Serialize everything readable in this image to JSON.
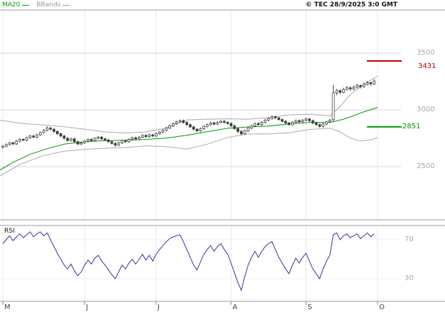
{
  "header": {
    "legend": [
      {
        "label": "MA20",
        "color": "#009900"
      },
      {
        "label": "BBands",
        "color": "#999999"
      }
    ],
    "copyright": "© TEC 28/9/2025 3:0 GMT"
  },
  "chart_data": [
    {
      "type": "candlestick",
      "name": "price-panel",
      "title": "",
      "xlabel": "",
      "ylabel": "",
      "grid": "horizontal",
      "y_ticks": [
        3500,
        3000,
        2500
      ],
      "ylim_visible": [
        2030,
        3880
      ],
      "candle_color": "#3c3c3c",
      "band_color": "#aaaaaa",
      "levels": [
        {
          "value": 3431,
          "color": "#bb0000"
        },
        {
          "value": 2851,
          "color": "#009900"
        }
      ],
      "x_months": [
        {
          "label": "M",
          "day": 0
        },
        {
          "label": "J",
          "day": 24
        },
        {
          "label": "J",
          "day": 45
        },
        {
          "label": "A",
          "day": 67
        },
        {
          "label": "S",
          "day": 89
        },
        {
          "label": "O",
          "day": 110
        }
      ],
      "candles": [
        [
          2670,
          2690,
          2660,
          2680
        ],
        [
          2680,
          2705,
          2670,
          2695
        ],
        [
          2695,
          2720,
          2685,
          2710
        ],
        [
          2710,
          2720,
          2690,
          2700
        ],
        [
          2700,
          2735,
          2690,
          2725
        ],
        [
          2725,
          2750,
          2715,
          2740
        ],
        [
          2740,
          2750,
          2725,
          2735
        ],
        [
          2735,
          2765,
          2725,
          2755
        ],
        [
          2755,
          2780,
          2745,
          2770
        ],
        [
          2770,
          2780,
          2750,
          2760
        ],
        [
          2760,
          2790,
          2750,
          2780
        ],
        [
          2780,
          2810,
          2770,
          2800
        ],
        [
          2800,
          2830,
          2790,
          2820
        ],
        [
          2820,
          2855,
          2810,
          2840
        ],
        [
          2840,
          2850,
          2820,
          2830
        ],
        [
          2830,
          2840,
          2800,
          2810
        ],
        [
          2810,
          2820,
          2780,
          2790
        ],
        [
          2790,
          2800,
          2760,
          2770
        ],
        [
          2770,
          2780,
          2740,
          2750
        ],
        [
          2750,
          2760,
          2720,
          2730
        ],
        [
          2730,
          2755,
          2720,
          2745
        ],
        [
          2745,
          2755,
          2710,
          2720
        ],
        [
          2720,
          2730,
          2690,
          2700
        ],
        [
          2700,
          2720,
          2690,
          2710
        ],
        [
          2710,
          2735,
          2700,
          2725
        ],
        [
          2725,
          2750,
          2715,
          2740
        ],
        [
          2740,
          2750,
          2720,
          2730
        ],
        [
          2730,
          2760,
          2720,
          2750
        ],
        [
          2750,
          2770,
          2740,
          2760
        ],
        [
          2760,
          2770,
          2735,
          2745
        ],
        [
          2745,
          2755,
          2725,
          2735
        ],
        [
          2735,
          2745,
          2710,
          2720
        ],
        [
          2720,
          2730,
          2695,
          2705
        ],
        [
          2705,
          2715,
          2675,
          2690
        ],
        [
          2690,
          2720,
          2680,
          2710
        ],
        [
          2710,
          2740,
          2700,
          2730
        ],
        [
          2730,
          2740,
          2710,
          2720
        ],
        [
          2720,
          2750,
          2710,
          2740
        ],
        [
          2740,
          2765,
          2730,
          2755
        ],
        [
          2755,
          2765,
          2735,
          2745
        ],
        [
          2745,
          2770,
          2735,
          2760
        ],
        [
          2760,
          2785,
          2750,
          2775
        ],
        [
          2775,
          2785,
          2755,
          2765
        ],
        [
          2765,
          2790,
          2755,
          2780
        ],
        [
          2780,
          2790,
          2760,
          2770
        ],
        [
          2770,
          2800,
          2760,
          2790
        ],
        [
          2790,
          2815,
          2780,
          2805
        ],
        [
          2805,
          2830,
          2795,
          2820
        ],
        [
          2820,
          2850,
          2810,
          2840
        ],
        [
          2840,
          2870,
          2830,
          2860
        ],
        [
          2860,
          2890,
          2850,
          2880
        ],
        [
          2880,
          2905,
          2870,
          2895
        ],
        [
          2895,
          2915,
          2885,
          2905
        ],
        [
          2905,
          2915,
          2880,
          2890
        ],
        [
          2890,
          2900,
          2860,
          2870
        ],
        [
          2870,
          2880,
          2840,
          2850
        ],
        [
          2850,
          2860,
          2820,
          2830
        ],
        [
          2830,
          2840,
          2805,
          2815
        ],
        [
          2815,
          2845,
          2805,
          2835
        ],
        [
          2835,
          2865,
          2825,
          2855
        ],
        [
          2855,
          2880,
          2845,
          2870
        ],
        [
          2870,
          2895,
          2860,
          2885
        ],
        [
          2885,
          2895,
          2865,
          2875
        ],
        [
          2875,
          2900,
          2865,
          2890
        ],
        [
          2890,
          2910,
          2880,
          2900
        ],
        [
          2900,
          2910,
          2880,
          2890
        ],
        [
          2890,
          2900,
          2870,
          2880
        ],
        [
          2880,
          2890,
          2850,
          2860
        ],
        [
          2860,
          2870,
          2825,
          2835
        ],
        [
          2835,
          2845,
          2795,
          2810
        ],
        [
          2810,
          2820,
          2775,
          2790
        ],
        [
          2790,
          2825,
          2780,
          2815
        ],
        [
          2815,
          2850,
          2805,
          2840
        ],
        [
          2840,
          2870,
          2830,
          2860
        ],
        [
          2860,
          2890,
          2850,
          2880
        ],
        [
          2880,
          2890,
          2860,
          2870
        ],
        [
          2870,
          2900,
          2860,
          2890
        ],
        [
          2890,
          2920,
          2880,
          2910
        ],
        [
          2910,
          2935,
          2900,
          2925
        ],
        [
          2925,
          2950,
          2915,
          2940
        ],
        [
          2940,
          2950,
          2920,
          2930
        ],
        [
          2930,
          2940,
          2905,
          2915
        ],
        [
          2915,
          2925,
          2890,
          2900
        ],
        [
          2900,
          2910,
          2875,
          2885
        ],
        [
          2885,
          2895,
          2860,
          2870
        ],
        [
          2870,
          2900,
          2860,
          2890
        ],
        [
          2890,
          2915,
          2880,
          2905
        ],
        [
          2905,
          2915,
          2885,
          2895
        ],
        [
          2895,
          2920,
          2885,
          2910
        ],
        [
          2910,
          2930,
          2900,
          2920
        ],
        [
          2920,
          2930,
          2895,
          2905
        ],
        [
          2905,
          2915,
          2875,
          2885
        ],
        [
          2885,
          2895,
          2860,
          2870
        ],
        [
          2870,
          2880,
          2845,
          2855
        ],
        [
          2855,
          2885,
          2845,
          2875
        ],
        [
          2875,
          2905,
          2865,
          2895
        ],
        [
          2895,
          2920,
          2885,
          2910
        ],
        [
          2915,
          3220,
          2895,
          3150
        ],
        [
          3150,
          3185,
          3130,
          3170
        ],
        [
          3170,
          3180,
          3140,
          3155
        ],
        [
          3155,
          3195,
          3145,
          3180
        ],
        [
          3180,
          3210,
          3170,
          3195
        ],
        [
          3195,
          3205,
          3170,
          3185
        ],
        [
          3185,
          3215,
          3175,
          3200
        ],
        [
          3200,
          3230,
          3190,
          3215
        ],
        [
          3215,
          3225,
          3190,
          3205
        ],
        [
          3205,
          3240,
          3195,
          3225
        ],
        [
          3225,
          3255,
          3215,
          3240
        ],
        [
          3240,
          3250,
          3215,
          3230
        ],
        [
          3230,
          3270,
          3220,
          3255
        ]
      ],
      "overlays": [
        {
          "name": "MA20",
          "color": "#009900",
          "points": [
            [
              -1,
              2468
            ],
            [
              3,
              2538
            ],
            [
              8,
              2608
            ],
            [
              13,
              2658
            ],
            [
              18,
              2698
            ],
            [
              24,
              2720
            ],
            [
              30,
              2730
            ],
            [
              36,
              2732
            ],
            [
              42,
              2740
            ],
            [
              48,
              2752
            ],
            [
              54,
              2776
            ],
            [
              60,
              2808
            ],
            [
              66,
              2838
            ],
            [
              72,
              2850
            ],
            [
              78,
              2858
            ],
            [
              84,
              2876
            ],
            [
              90,
              2890
            ],
            [
              96,
              2890
            ],
            [
              100,
              2918
            ],
            [
              103,
              2950
            ],
            [
              106,
              2984
            ],
            [
              109,
              3012
            ],
            [
              110,
              3022
            ]
          ]
        },
        {
          "name": "BBands-upper",
          "color": "#aaaaaa",
          "points": [
            [
              -1,
              2910
            ],
            [
              5,
              2882
            ],
            [
              12,
              2868
            ],
            [
              18,
              2852
            ],
            [
              24,
              2830
            ],
            [
              30,
              2806
            ],
            [
              36,
              2796
            ],
            [
              42,
              2806
            ],
            [
              48,
              2840
            ],
            [
              54,
              2912
            ],
            [
              60,
              2918
            ],
            [
              66,
              2922
            ],
            [
              72,
              2918
            ],
            [
              78,
              2932
            ],
            [
              84,
              2956
            ],
            [
              90,
              2962
            ],
            [
              96,
              2948
            ],
            [
              99,
              3030
            ],
            [
              102,
              3135
            ],
            [
              105,
              3205
            ],
            [
              108,
              3262
            ],
            [
              110,
              3298
            ]
          ]
        },
        {
          "name": "BBands-lower",
          "color": "#aaaaaa",
          "points": [
            [
              -1,
              2415
            ],
            [
              5,
              2520
            ],
            [
              12,
              2598
            ],
            [
              18,
              2636
            ],
            [
              24,
              2652
            ],
            [
              30,
              2662
            ],
            [
              36,
              2668
            ],
            [
              42,
              2684
            ],
            [
              48,
              2676
            ],
            [
              54,
              2655
            ],
            [
              60,
              2698
            ],
            [
              66,
              2758
            ],
            [
              72,
              2788
            ],
            [
              78,
              2788
            ],
            [
              84,
              2798
            ],
            [
              90,
              2828
            ],
            [
              96,
              2838
            ],
            [
              99,
              2806
            ],
            [
              102,
              2752
            ],
            [
              105,
              2726
            ],
            [
              108,
              2736
            ],
            [
              110,
              2756
            ]
          ]
        }
      ]
    },
    {
      "type": "line",
      "name": "RSI",
      "color": "#333399",
      "y_ticks": [
        70,
        30
      ],
      "ylim_visible": [
        7,
        84
      ],
      "values": [
        66,
        70,
        74,
        69,
        73,
        76,
        72,
        75,
        78,
        73,
        76,
        78,
        74,
        77,
        70,
        63,
        56,
        50,
        44,
        40,
        45,
        38,
        33,
        37,
        44,
        49,
        45,
        51,
        54,
        48,
        44,
        39,
        34,
        30,
        37,
        44,
        40,
        46,
        50,
        45,
        50,
        55,
        49,
        54,
        48,
        55,
        60,
        64,
        68,
        71,
        73,
        74,
        75,
        68,
        60,
        52,
        44,
        39,
        47,
        55,
        60,
        64,
        58,
        63,
        66,
        60,
        55,
        46,
        36,
        26,
        18,
        32,
        44,
        52,
        58,
        52,
        58,
        63,
        66,
        68,
        60,
        52,
        46,
        40,
        35,
        44,
        51,
        46,
        52,
        56,
        48,
        40,
        35,
        30,
        40,
        48,
        54,
        75,
        77,
        70,
        74,
        76,
        72,
        74,
        76,
        71,
        74,
        77,
        73,
        76
      ]
    }
  ]
}
